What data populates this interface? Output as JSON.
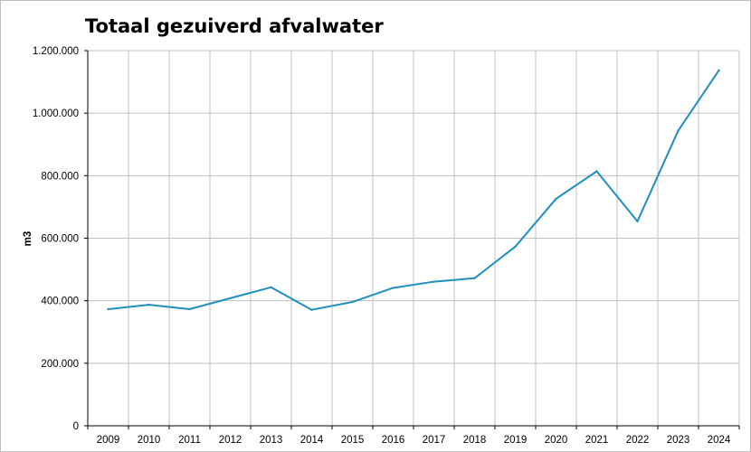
{
  "chart_data": {
    "type": "line",
    "title": "Totaal gezuiverd afvalwater",
    "xlabel": "",
    "ylabel": "m3",
    "categories": [
      "2009",
      "2010",
      "2011",
      "2012",
      "2013",
      "2014",
      "2015",
      "2016",
      "2017",
      "2018",
      "2019",
      "2020",
      "2021",
      "2022",
      "2023",
      "2024"
    ],
    "series": [
      {
        "values": [
          373000,
          387000,
          373000,
          408000,
          443000,
          371000,
          396000,
          441000,
          461000,
          472000,
          573000,
          726000,
          814000,
          654000,
          944000,
          1137000
        ]
      }
    ],
    "ylim": [
      0,
      1200000
    ],
    "yticks": [
      "0",
      "200.000",
      "400.000",
      "600.000",
      "800.000",
      "1.000.000",
      "1.200.000"
    ],
    "grid": true,
    "legend": "none",
    "line_color": "#1f8fbf",
    "grid_color": "#c0c0c0"
  }
}
